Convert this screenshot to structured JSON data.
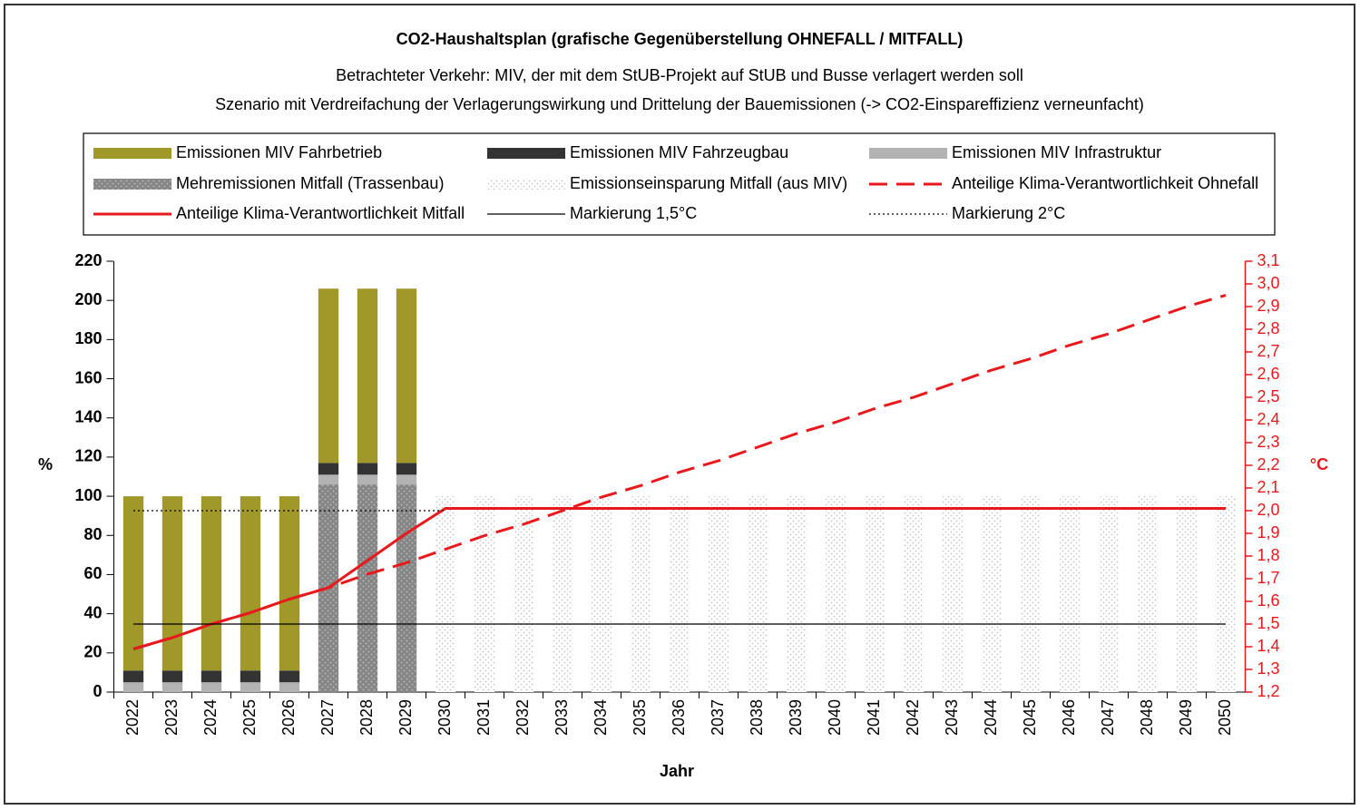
{
  "chart_data": {
    "type": "bar",
    "title": "CO2-Haushaltsplan (grafische Gegenüberstellung OHNEFALL / MITFALL)",
    "subtitle": [
      "Betrachteter Verkehr: MIV, der mit dem StUB-Projekt auf StUB und Busse verlagert werden soll",
      "Szenario mit Verdreifachung der Verlagerungswirkung und Drittelung der Bauemissionen (-> CO2-Einspareffizienz verneunfacht)"
    ],
    "x_label": "Jahr",
    "y_label": "%",
    "y2_label": "°C",
    "categories": [
      "2022",
      "2023",
      "2024",
      "2025",
      "2026",
      "2027",
      "2028",
      "2029",
      "2030",
      "2031",
      "2032",
      "2033",
      "2034",
      "2035",
      "2036",
      "2037",
      "2038",
      "2039",
      "2040",
      "2041",
      "2042",
      "2043",
      "2044",
      "2045",
      "2046",
      "2047",
      "2048",
      "2049",
      "2050"
    ],
    "ylim": [
      0,
      220
    ],
    "yticks": [
      0,
      20,
      40,
      60,
      80,
      100,
      120,
      140,
      160,
      180,
      200,
      220
    ],
    "y2lim": [
      1.2,
      3.1
    ],
    "y2ticks": [
      {
        "value": 1.2,
        "label": "1,2"
      },
      {
        "value": 1.3,
        "label": "1,3"
      },
      {
        "value": 1.4,
        "label": "1,4"
      },
      {
        "value": 1.5,
        "label": "1,5"
      },
      {
        "value": 1.6,
        "label": "1,6"
      },
      {
        "value": 1.7,
        "label": "1,7"
      },
      {
        "value": 1.8,
        "label": "1,8"
      },
      {
        "value": 1.9,
        "label": "1,9"
      },
      {
        "value": 2.0,
        "label": "2,0"
      },
      {
        "value": 2.1,
        "label": "2,1"
      },
      {
        "value": 2.2,
        "label": "2,2"
      },
      {
        "value": 2.3,
        "label": "2,3"
      },
      {
        "value": 2.4,
        "label": "2,4"
      },
      {
        "value": 2.5,
        "label": "2,5"
      },
      {
        "value": 2.6,
        "label": "2,6"
      },
      {
        "value": 2.7,
        "label": "2,7"
      },
      {
        "value": 2.8,
        "label": "2,8"
      },
      {
        "value": 2.9,
        "label": "2,9"
      },
      {
        "value": 3.0,
        "label": "3,0"
      },
      {
        "value": 3.1,
        "label": "3,1"
      }
    ],
    "series": [
      {
        "name": "Emissionen MIV Fahrbetrieb",
        "type": "bar",
        "color": "#a0992a",
        "values": [
          89,
          89,
          89,
          89,
          89,
          89,
          89,
          89,
          null,
          null,
          null,
          null,
          null,
          null,
          null,
          null,
          null,
          null,
          null,
          null,
          null,
          null,
          null,
          null,
          null,
          null,
          null,
          null,
          null
        ]
      },
      {
        "name": "Emissionen MIV Fahrzeugbau",
        "type": "bar",
        "color": "#333333",
        "values": [
          6,
          6,
          6,
          6,
          6,
          6,
          6,
          6,
          null,
          null,
          null,
          null,
          null,
          null,
          null,
          null,
          null,
          null,
          null,
          null,
          null,
          null,
          null,
          null,
          null,
          null,
          null,
          null,
          null
        ]
      },
      {
        "name": "Emissionen MIV Infrastruktur",
        "type": "bar",
        "color": "#b3b3b3",
        "values": [
          5,
          5,
          5,
          5,
          5,
          5,
          5,
          5,
          null,
          null,
          null,
          null,
          null,
          null,
          null,
          null,
          null,
          null,
          null,
          null,
          null,
          null,
          null,
          null,
          null,
          null,
          null,
          null,
          null
        ]
      },
      {
        "name": "Mehremissionen Mitfall (Trassenbau)",
        "type": "bar",
        "color": "#8a8a8a",
        "pattern": "dots-dark",
        "values": [
          null,
          null,
          null,
          null,
          null,
          106,
          106,
          106,
          null,
          null,
          null,
          null,
          null,
          null,
          null,
          null,
          null,
          null,
          null,
          null,
          null,
          null,
          null,
          null,
          null,
          null,
          null,
          null,
          null
        ]
      },
      {
        "name": "Emissionseinsparung Mitfall (aus MIV)",
        "type": "bar",
        "color": "#f4f4f4",
        "pattern": "dots-light",
        "values": [
          null,
          null,
          null,
          null,
          null,
          null,
          null,
          null,
          100,
          100,
          100,
          100,
          100,
          100,
          100,
          100,
          100,
          100,
          100,
          100,
          100,
          100,
          100,
          100,
          100,
          100,
          100,
          100,
          100
        ]
      },
      {
        "name": "Anteilige Klima-Verantwortlichkeit Ohnefall",
        "type": "line",
        "axis": "y2",
        "color": "#e8191c",
        "line_style": "dashed",
        "values": [
          1.39,
          1.44,
          1.5,
          1.55,
          1.61,
          1.66,
          1.72,
          1.77,
          1.83,
          1.89,
          1.94,
          2.0,
          2.06,
          2.11,
          2.17,
          2.22,
          2.28,
          2.34,
          2.39,
          2.45,
          2.5,
          2.56,
          2.62,
          2.67,
          2.73,
          2.78,
          2.84,
          2.9,
          2.95
        ]
      },
      {
        "name": "Anteilige Klima-Verantwortlichkeit Mitfall",
        "type": "line",
        "axis": "y2",
        "color": "#e8191c",
        "line_style": "solid",
        "values": [
          1.39,
          1.44,
          1.5,
          1.55,
          1.61,
          1.66,
          1.78,
          1.9,
          2.01,
          2.01,
          2.01,
          2.01,
          2.01,
          2.01,
          2.01,
          2.01,
          2.01,
          2.01,
          2.01,
          2.01,
          2.01,
          2.01,
          2.01,
          2.01,
          2.01,
          2.01,
          2.01,
          2.01,
          2.01
        ]
      },
      {
        "name": "Markierung 1,5°C",
        "type": "line",
        "axis": "y2",
        "color": "#000000",
        "line_style": "thin",
        "values": [
          1.5,
          1.5,
          1.5,
          1.5,
          1.5,
          1.5,
          1.5,
          1.5,
          1.5,
          1.5,
          1.5,
          1.5,
          1.5,
          1.5,
          1.5,
          1.5,
          1.5,
          1.5,
          1.5,
          1.5,
          1.5,
          1.5,
          1.5,
          1.5,
          1.5,
          1.5,
          1.5,
          1.5,
          1.5
        ]
      },
      {
        "name": "Markierung 2°C",
        "type": "line",
        "axis": "y2",
        "color": "#000000",
        "line_style": "dotted",
        "values": [
          2.0,
          2.0,
          2.0,
          2.0,
          2.0,
          2.0,
          2.0,
          2.0,
          2.0,
          null,
          null,
          null,
          null,
          null,
          null,
          null,
          null,
          null,
          null,
          null,
          null,
          null,
          null,
          null,
          null,
          null,
          null,
          null,
          null
        ]
      }
    ]
  }
}
